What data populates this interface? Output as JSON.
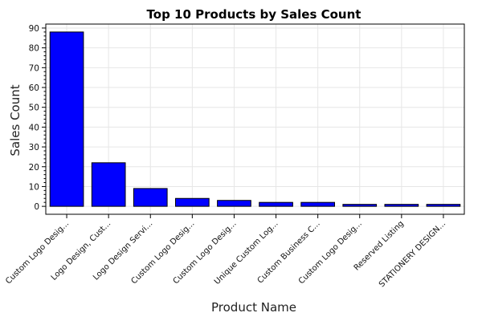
{
  "chart_data": {
    "type": "bar",
    "title": "Top 10 Products by Sales Count",
    "xlabel": "Product Name",
    "ylabel": "Sales Count",
    "categories": [
      "Custom Logo Desig...",
      "Logo Design, Cust...",
      "Logo Design Servi...",
      "Custom Logo Desig...",
      "Custom Logo Desig...",
      "Unique Custom Log...",
      "Custom Business C...",
      "Custom Logo Desig...",
      "Reserved Listing",
      "STATIONERY DESIGN..."
    ],
    "values": [
      88,
      22,
      9,
      4,
      3,
      2,
      2,
      1,
      1,
      1
    ],
    "ylim": [
      -4,
      92
    ],
    "yticks": [
      0,
      10,
      20,
      30,
      40,
      50,
      60,
      70,
      80,
      90
    ],
    "grid": true,
    "bar_color": "#0000ff",
    "bar_edge_color": "#000000"
  }
}
